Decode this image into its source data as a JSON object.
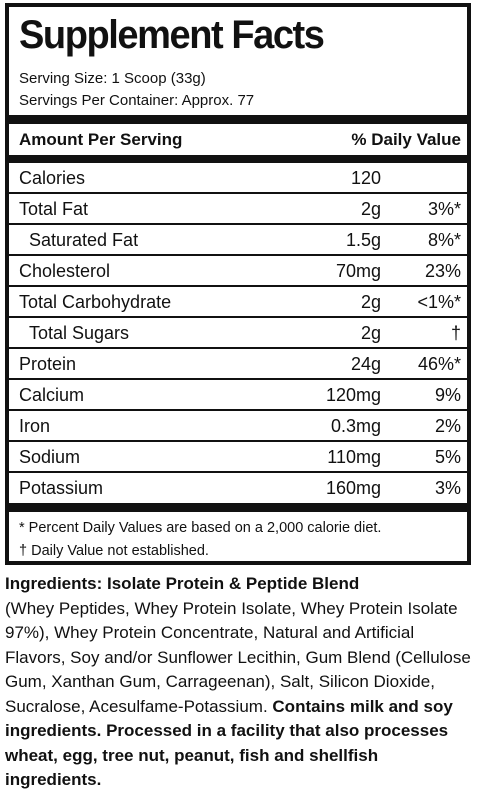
{
  "panel": {
    "title": "Supplement Facts",
    "serving_size": "Serving Size: 1 Scoop (33g)",
    "servings_per_container": "Servings Per Container: Approx. 77",
    "header_amount": "Amount Per Serving",
    "header_dv": "% Daily Value"
  },
  "nutrients": [
    {
      "name": "Calories",
      "amount": "120",
      "dv": ""
    },
    {
      "name": "Total Fat",
      "amount": "2g",
      "dv": "3%*"
    },
    {
      "name": "Saturated Fat",
      "amount": "1.5g",
      "dv": "8%*"
    },
    {
      "name": "Cholesterol",
      "amount": "70mg",
      "dv": "23%"
    },
    {
      "name": "Total Carbohydrate",
      "amount": "2g",
      "dv": "<1%*"
    },
    {
      "name": "Total Sugars",
      "amount": "2g",
      "dv": "†"
    },
    {
      "name": "Protein",
      "amount": "24g",
      "dv": "46%*"
    },
    {
      "name": "Calcium",
      "amount": "120mg",
      "dv": "9%"
    },
    {
      "name": "Iron",
      "amount": "0.3mg",
      "dv": "2%"
    },
    {
      "name": "Sodium",
      "amount": "110mg",
      "dv": "5%"
    },
    {
      "name": "Potassium",
      "amount": "160mg",
      "dv": "3%"
    }
  ],
  "footnotes": {
    "percent_dv": "* Percent Daily Values are based on a 2,000 calorie diet.",
    "not_established": "† Daily Value not established."
  },
  "ingredients": {
    "heading": "Ingredients: Isolate Protein & Peptide Blend",
    "list": "(Whey Peptides, Whey Protein Isolate, Whey Protein Isolate 97%), Whey Protein Concentrate, Natural and Artificial Flavors, Soy and/or Sunflower Lecithin, Gum Blend (Cellulose Gum, Xanthan Gum, Carrageenan), Salt, Silicon Dioxide, Sucralose, Acesulfame-Potassium.",
    "allergen_statement": "Contains milk and soy ingredients. Processed in a facility that also processes wheat, egg, tree nut, peanut, fish and shellfish ingredients."
  }
}
